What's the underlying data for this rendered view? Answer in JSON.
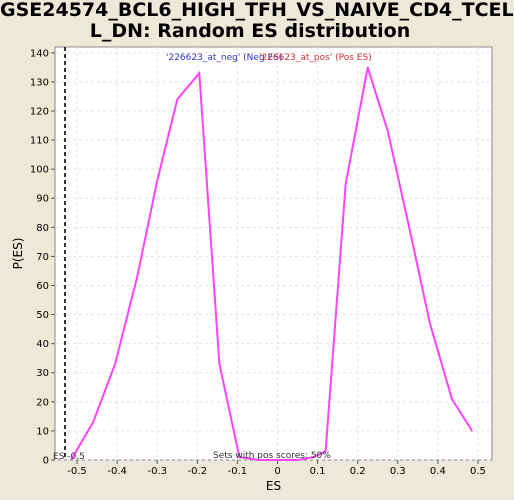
{
  "title_lines": [
    "GSE24574_BCL6_HIGH_TFH_VS_NAIVE_CD4_TCEL",
    "L_DN: Random ES distribution"
  ],
  "chart_data": {
    "type": "line",
    "xlabel": "ES",
    "ylabel": "P(ES)",
    "xlim": [
      -0.555,
      0.535
    ],
    "ylim": [
      0,
      142
    ],
    "xticks": [
      -0.5,
      -0.4,
      -0.3,
      -0.2,
      -0.1,
      0,
      0.1,
      0.2,
      0.3,
      0.4,
      0.5
    ],
    "xtick_labels": [
      "-0.5",
      "-0.4",
      "-0.3",
      "-0.2",
      "-0.1",
      "0",
      "0.1",
      "0.2",
      "0.3",
      "0.4",
      "0.5"
    ],
    "yticks": [
      0,
      10,
      20,
      30,
      40,
      50,
      60,
      70,
      80,
      90,
      100,
      110,
      120,
      130,
      140
    ],
    "ytick_labels": [
      "0",
      "10",
      "20",
      "30",
      "40",
      "50",
      "60",
      "70",
      "80",
      "90",
      "100",
      "110",
      "120",
      "130",
      "140"
    ],
    "grid": true,
    "series": [
      {
        "color": "#ff44ff",
        "x": [
          -0.515,
          -0.46,
          -0.405,
          -0.35,
          -0.3,
          -0.25,
          -0.195,
          -0.145,
          -0.095,
          -0.045,
          0.0,
          0.05,
          0.09,
          0.12,
          0.17,
          0.225,
          0.275,
          0.33,
          0.38,
          0.435,
          0.485
        ],
        "y": [
          0,
          13,
          33,
          63,
          96,
          124,
          133,
          33,
          1,
          0,
          0,
          0,
          1,
          3,
          95,
          135,
          113,
          79,
          47,
          21,
          10
        ]
      }
    ],
    "marker": {
      "x": -0.53,
      "label": "ES -0.5",
      "color": "#333333"
    },
    "annotations": {
      "neg_label": "'226623_at_neg' (Neg ES)",
      "neg_color": "#3333cc",
      "pos_label": "'226623_at_pos' (Pos ES)",
      "pos_color": "#cc3333",
      "sets_label": "Sets with pos scores: 50%"
    }
  }
}
